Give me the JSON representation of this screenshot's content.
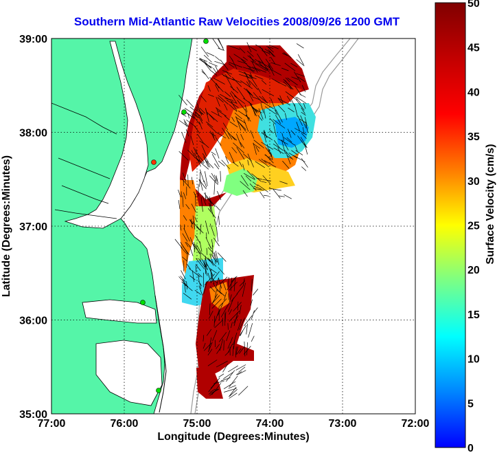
{
  "title": "Southern Mid-Atlantic Raw Velocities 2008/09/26 1200 GMT",
  "axes": {
    "xlabel": "Longitude (Degrees:Minutes)",
    "ylabel": "Latitude (Degrees:Minutes)",
    "x_ticks": [
      "77:00",
      "76:00",
      "75:00",
      "74:00",
      "73:00",
      "72:00"
    ],
    "y_ticks": [
      "39:00",
      "38:00",
      "37:00",
      "36:00",
      "35:00"
    ],
    "x_range": [
      -77,
      -72
    ],
    "y_range": [
      35,
      39
    ],
    "grid": "dotted"
  },
  "colorbar": {
    "label": "Surface Velocity (cm/s)",
    "ticks": [
      "50",
      "45",
      "40",
      "35",
      "30",
      "25",
      "20",
      "15",
      "10",
      "5",
      "0"
    ],
    "range": [
      0,
      50
    ],
    "colormap": "jet"
  },
  "colors": {
    "land": "#55f5a8",
    "title": "#0000ee",
    "vector": "#000000",
    "bathymetry": "#999999"
  }
}
